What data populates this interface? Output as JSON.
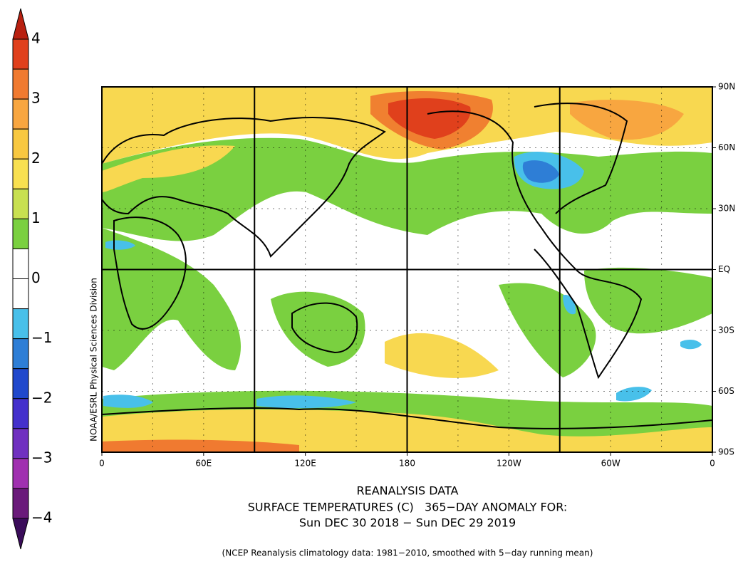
{
  "colorbar": {
    "ticks": [
      "4",
      "3",
      "2",
      "1",
      "0",
      "−1",
      "−2",
      "−3",
      "−4"
    ],
    "colors": [
      "#e0401c",
      "#f07a30",
      "#f8a640",
      "#f8c840",
      "#f8e050",
      "#c8e050",
      "#7ad040",
      "#ffffff",
      "#ffffff",
      "#48c0ea",
      "#2e7ed6",
      "#2048cc",
      "#4430cc",
      "#7030c0",
      "#a030b0",
      "#6a1a7a"
    ],
    "top_color": "#b82010",
    "bottom_color": "#3a0c5a"
  },
  "lat_labels": [
    "90N",
    "60N",
    "30N",
    "EQ",
    "30S",
    "60S",
    "90S"
  ],
  "lon_labels": [
    "0",
    "60E",
    "120E",
    "180",
    "120W",
    "60W",
    "0"
  ],
  "credit": "NOAA/ESRL Physical Sciences Division",
  "title_lines": [
    "REANALYSIS DATA",
    "SURFACE TEMPERATURES (C)   365−DAY ANOMALY FOR:",
    "Sun DEC 30 2018 − Sun DEC 29 2019"
  ],
  "footnote": "(NCEP Reanalysis climatology data: 1981−2010, smoothed with 5−day running mean)"
}
